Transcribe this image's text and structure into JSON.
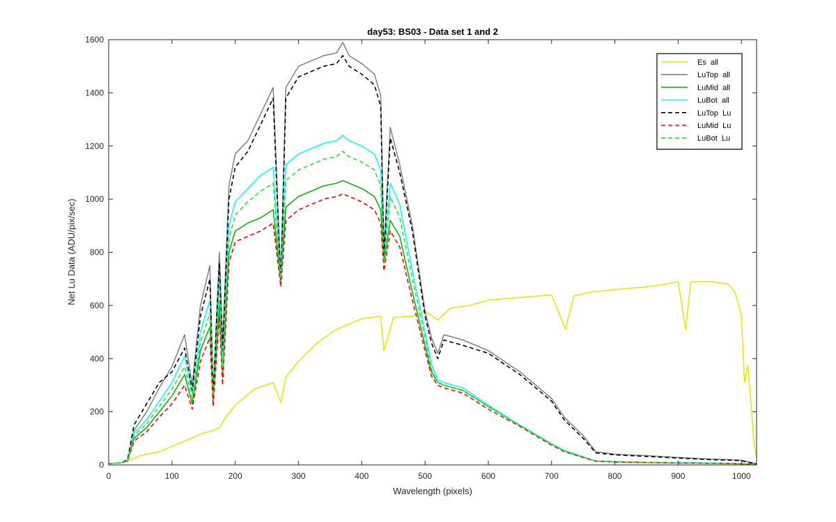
{
  "chart_data": {
    "type": "line",
    "title": "day53: BS03 - Data set 1 and 2",
    "xlabel": "Wavelength (pixels)",
    "ylabel": "Net Lu Data (ADU/pix/sec)",
    "xlim": [
      0,
      1024
    ],
    "ylim": [
      0,
      1600
    ],
    "xticks": [
      0,
      100,
      200,
      300,
      400,
      500,
      600,
      700,
      800,
      900,
      1000
    ],
    "yticks": [
      0,
      200,
      400,
      600,
      800,
      1000,
      1200,
      1400,
      1600
    ],
    "grid": false,
    "legend_position": "top-right",
    "series": [
      {
        "name": "Es  all",
        "color": "#e6e600",
        "style": "solid",
        "x": [
          0,
          20,
          35,
          50,
          80,
          100,
          130,
          150,
          165,
          175,
          185,
          200,
          230,
          260,
          272,
          280,
          300,
          330,
          360,
          400,
          430,
          435,
          450,
          480,
          500,
          520,
          540,
          570,
          600,
          650,
          700,
          722,
          735,
          760,
          800,
          850,
          880,
          900,
          912,
          920,
          950,
          980,
          990,
          1000,
          1005,
          1010,
          1015,
          1020,
          1024
        ],
        "y": [
          5,
          8,
          20,
          35,
          50,
          70,
          100,
          120,
          130,
          140,
          180,
          225,
          285,
          310,
          235,
          330,
          390,
          460,
          510,
          550,
          560,
          430,
          555,
          560,
          580,
          545,
          590,
          600,
          620,
          630,
          640,
          510,
          635,
          650,
          660,
          670,
          680,
          690,
          510,
          690,
          690,
          680,
          650,
          560,
          310,
          375,
          240,
          80,
          30
        ]
      },
      {
        "name": "LuTop  all",
        "color": "#808080",
        "style": "solid",
        "x": [
          0,
          20,
          30,
          40,
          60,
          80,
          100,
          120,
          132,
          145,
          160,
          165,
          175,
          180,
          190,
          200,
          220,
          240,
          260,
          272,
          280,
          300,
          320,
          340,
          360,
          370,
          380,
          400,
          420,
          430,
          435,
          445,
          460,
          480,
          500,
          510,
          520,
          530,
          560,
          600,
          650,
          700,
          720,
          750,
          770,
          800,
          850,
          900,
          950,
          980,
          1000,
          1010,
          1024
        ],
        "y": [
          5,
          8,
          20,
          130,
          200,
          290,
          370,
          490,
          300,
          600,
          750,
          270,
          800,
          450,
          1050,
          1170,
          1220,
          1320,
          1420,
          700,
          1420,
          1500,
          1520,
          1540,
          1550,
          1590,
          1540,
          1510,
          1470,
          1390,
          800,
          1270,
          1130,
          900,
          580,
          480,
          420,
          490,
          470,
          430,
          350,
          250,
          180,
          110,
          50,
          40,
          35,
          28,
          22,
          20,
          18,
          12,
          5
        ]
      },
      {
        "name": "LuMid  all",
        "color": "#00b000",
        "style": "solid",
        "x": [
          0,
          20,
          30,
          40,
          60,
          80,
          100,
          120,
          132,
          145,
          160,
          165,
          175,
          180,
          190,
          200,
          220,
          240,
          260,
          272,
          280,
          300,
          320,
          340,
          360,
          370,
          380,
          400,
          420,
          430,
          435,
          445,
          460,
          480,
          500,
          510,
          520,
          530,
          560,
          600,
          650,
          700,
          720,
          750,
          770,
          800,
          850,
          900,
          950,
          980,
          1000,
          1010,
          1024
        ],
        "y": [
          5,
          8,
          15,
          100,
          140,
          200,
          260,
          340,
          230,
          430,
          520,
          240,
          600,
          330,
          800,
          880,
          910,
          930,
          960,
          690,
          970,
          1010,
          1030,
          1050,
          1060,
          1070,
          1060,
          1040,
          1010,
          960,
          760,
          920,
          860,
          650,
          450,
          350,
          310,
          300,
          280,
          220,
          150,
          80,
          55,
          30,
          15,
          12,
          10,
          8,
          7,
          6,
          5,
          4,
          2
        ]
      },
      {
        "name": "LuBot  all",
        "color": "#00ffff",
        "style": "solid",
        "x": [
          0,
          20,
          30,
          40,
          60,
          80,
          100,
          120,
          132,
          145,
          160,
          165,
          175,
          180,
          190,
          200,
          220,
          240,
          260,
          272,
          280,
          300,
          320,
          340,
          360,
          370,
          380,
          400,
          420,
          430,
          435,
          445,
          460,
          480,
          500,
          510,
          520,
          530,
          560,
          600,
          650,
          700,
          720,
          750,
          770,
          800,
          850,
          900,
          950,
          980,
          1000,
          1010,
          1024
        ],
        "y": [
          5,
          8,
          18,
          120,
          170,
          240,
          310,
          410,
          270,
          500,
          620,
          280,
          700,
          380,
          900,
          990,
          1040,
          1090,
          1120,
          700,
          1130,
          1170,
          1190,
          1210,
          1220,
          1240,
          1220,
          1200,
          1170,
          1110,
          780,
          1060,
          980,
          730,
          500,
          380,
          320,
          310,
          290,
          225,
          150,
          80,
          55,
          30,
          15,
          12,
          10,
          8,
          7,
          6,
          5,
          4,
          2
        ]
      },
      {
        "name": "LuTop  Lu",
        "color": "#000000",
        "style": "dashed",
        "x": [
          0,
          20,
          30,
          40,
          60,
          80,
          100,
          120,
          132,
          145,
          160,
          165,
          175,
          180,
          190,
          200,
          220,
          240,
          260,
          272,
          280,
          300,
          320,
          340,
          360,
          370,
          380,
          400,
          420,
          430,
          435,
          445,
          460,
          480,
          500,
          510,
          520,
          530,
          560,
          600,
          650,
          700,
          720,
          750,
          770,
          800,
          850,
          900,
          950,
          980,
          1000,
          1010,
          1024
        ],
        "y": [
          5,
          8,
          20,
          150,
          230,
          310,
          350,
          440,
          280,
          560,
          700,
          260,
          760,
          430,
          1000,
          1120,
          1180,
          1280,
          1380,
          680,
          1380,
          1460,
          1480,
          1500,
          1510,
          1540,
          1500,
          1470,
          1430,
          1350,
          780,
          1230,
          1100,
          880,
          560,
          460,
          400,
          470,
          450,
          420,
          340,
          240,
          170,
          100,
          45,
          38,
          32,
          26,
          20,
          18,
          16,
          10,
          4
        ]
      },
      {
        "name": "LuMid  Lu",
        "color": "#ff0000",
        "style": "dashed",
        "x": [
          0,
          20,
          30,
          40,
          60,
          80,
          100,
          120,
          132,
          145,
          160,
          165,
          175,
          180,
          190,
          200,
          220,
          240,
          260,
          272,
          280,
          300,
          320,
          340,
          360,
          370,
          380,
          400,
          420,
          430,
          435,
          445,
          460,
          480,
          500,
          510,
          520,
          530,
          560,
          600,
          650,
          700,
          720,
          750,
          770,
          800,
          850,
          900,
          950,
          980,
          1000,
          1010,
          1024
        ],
        "y": [
          5,
          8,
          14,
          90,
          125,
          180,
          230,
          300,
          210,
          390,
          480,
          220,
          560,
          300,
          760,
          840,
          860,
          880,
          910,
          670,
          920,
          960,
          980,
          1000,
          1010,
          1020,
          1010,
          990,
          960,
          910,
          730,
          880,
          820,
          620,
          430,
          335,
          300,
          290,
          270,
          210,
          145,
          75,
          50,
          28,
          14,
          11,
          9,
          7,
          6,
          5,
          4,
          3,
          2
        ]
      },
      {
        "name": "LuBot  Lu",
        "color": "#33dd33",
        "style": "dashed",
        "x": [
          0,
          20,
          30,
          40,
          60,
          80,
          100,
          120,
          132,
          145,
          160,
          165,
          175,
          180,
          190,
          200,
          220,
          240,
          260,
          272,
          280,
          300,
          320,
          340,
          360,
          370,
          380,
          400,
          420,
          430,
          435,
          445,
          460,
          480,
          500,
          510,
          520,
          530,
          560,
          600,
          650,
          700,
          720,
          750,
          770,
          800,
          850,
          900,
          950,
          980,
          1000,
          1010,
          1024
        ],
        "y": [
          5,
          8,
          16,
          110,
          155,
          220,
          285,
          370,
          250,
          460,
          570,
          260,
          650,
          350,
          850,
          940,
          990,
          1030,
          1060,
          690,
          1070,
          1110,
          1130,
          1150,
          1160,
          1180,
          1160,
          1140,
          1110,
          1050,
          760,
          1010,
          930,
          700,
          480,
          360,
          310,
          300,
          280,
          220,
          148,
          78,
          52,
          29,
          14,
          11,
          9,
          7,
          6,
          5,
          4,
          3,
          2
        ]
      }
    ]
  }
}
